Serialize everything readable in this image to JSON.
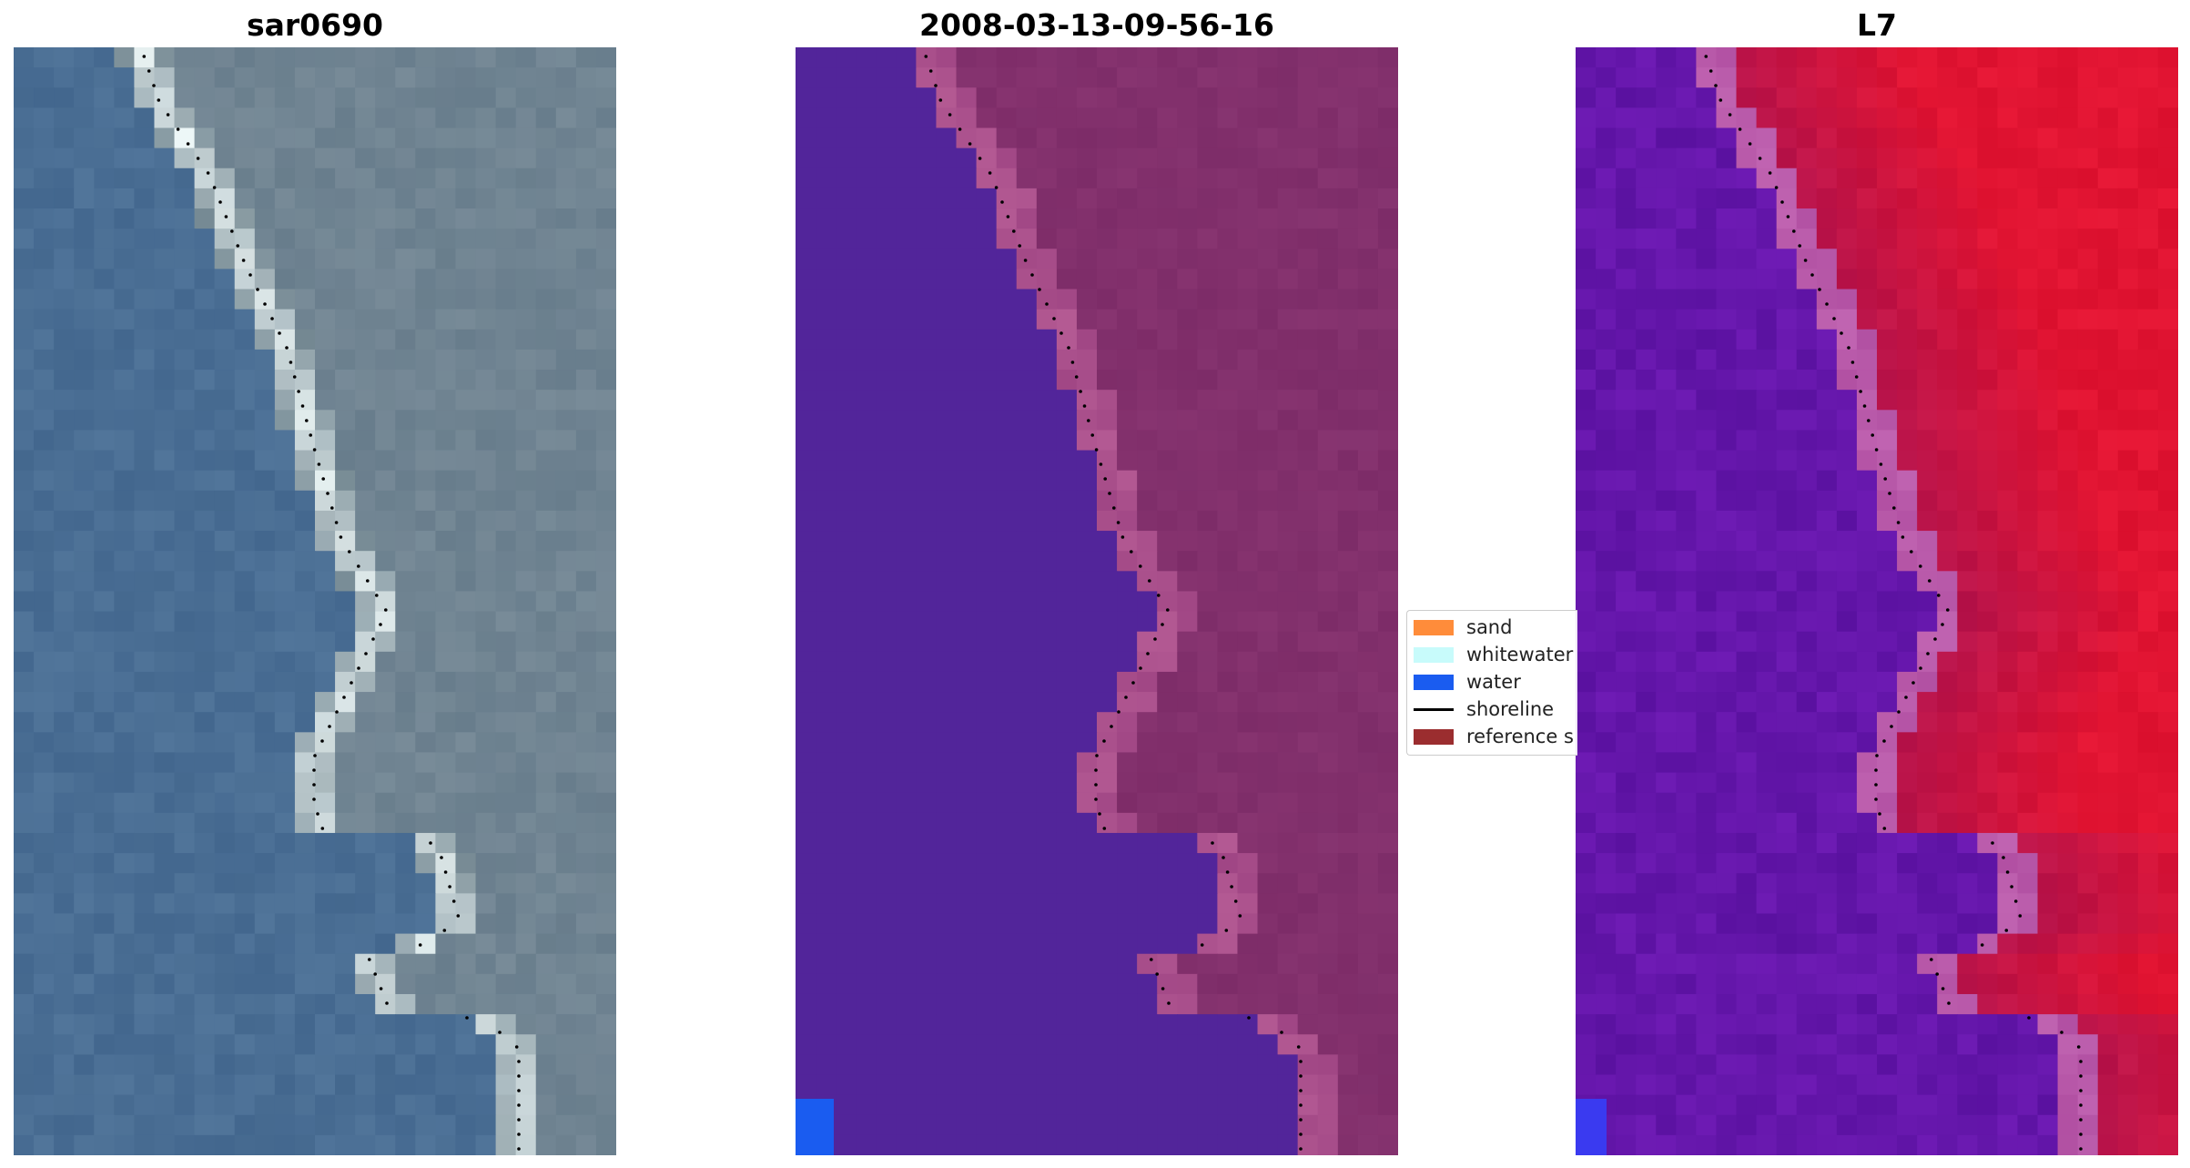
{
  "panels": [
    {
      "title": "sar0690"
    },
    {
      "title": "2008-03-13-09-56-16"
    },
    {
      "title": "L7"
    }
  ],
  "legend": {
    "items": [
      {
        "label": "sand",
        "color": "#ff8c3a",
        "kind": "patch"
      },
      {
        "label": "whitewater",
        "color": "#c8fbfb",
        "kind": "patch"
      },
      {
        "label": "water",
        "color": "#1a5cf0",
        "kind": "patch"
      },
      {
        "label": "shoreline",
        "color": "#000000",
        "kind": "line"
      },
      {
        "label": "reference s",
        "color": "#9b2d2f",
        "kind": "patch"
      }
    ]
  },
  "colors": {
    "sea_rgb": "#4a6e94",
    "land_rgb": "#7a8a96",
    "class_water_overlay": "#52259a",
    "class_land": "#86316e",
    "mndwi_water": "#5a1aa8",
    "mndwi_land": "#c8143c",
    "shoreline_dots": "#000000"
  }
}
